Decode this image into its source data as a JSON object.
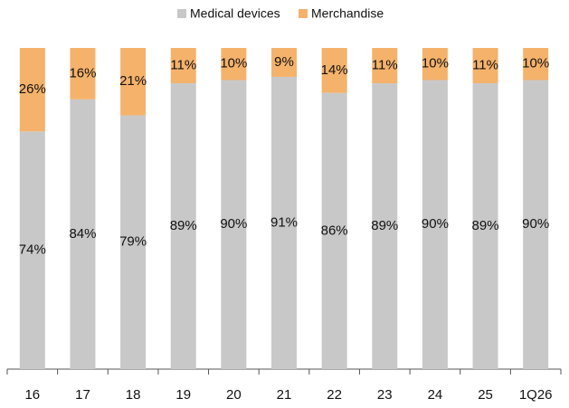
{
  "chart_data": {
    "type": "stacked_bar",
    "categories": [
      "16",
      "17",
      "18",
      "19",
      "20",
      "21",
      "22",
      "23",
      "24",
      "25",
      "1Q26"
    ],
    "series": [
      {
        "name": "Medical devices",
        "color": "#c8c8c8",
        "values": [
          74,
          84,
          79,
          89,
          90,
          91,
          86,
          89,
          90,
          89,
          90
        ],
        "value_labels": [
          "74%",
          "84%",
          "79%",
          "89%",
          "90%",
          "91%",
          "86%",
          "89%",
          "90%",
          "89%",
          "90%"
        ]
      },
      {
        "name": "Merchandise",
        "color": "#f5b26b",
        "values": [
          26,
          16,
          21,
          11,
          10,
          9,
          14,
          11,
          10,
          11,
          10
        ],
        "value_labels": [
          "26%",
          "16%",
          "21%",
          "11%",
          "10%",
          "9%",
          "14%",
          "11%",
          "10%",
          "11%",
          "10%"
        ]
      }
    ],
    "ylim": [
      0,
      100
    ],
    "legend": "top"
  }
}
